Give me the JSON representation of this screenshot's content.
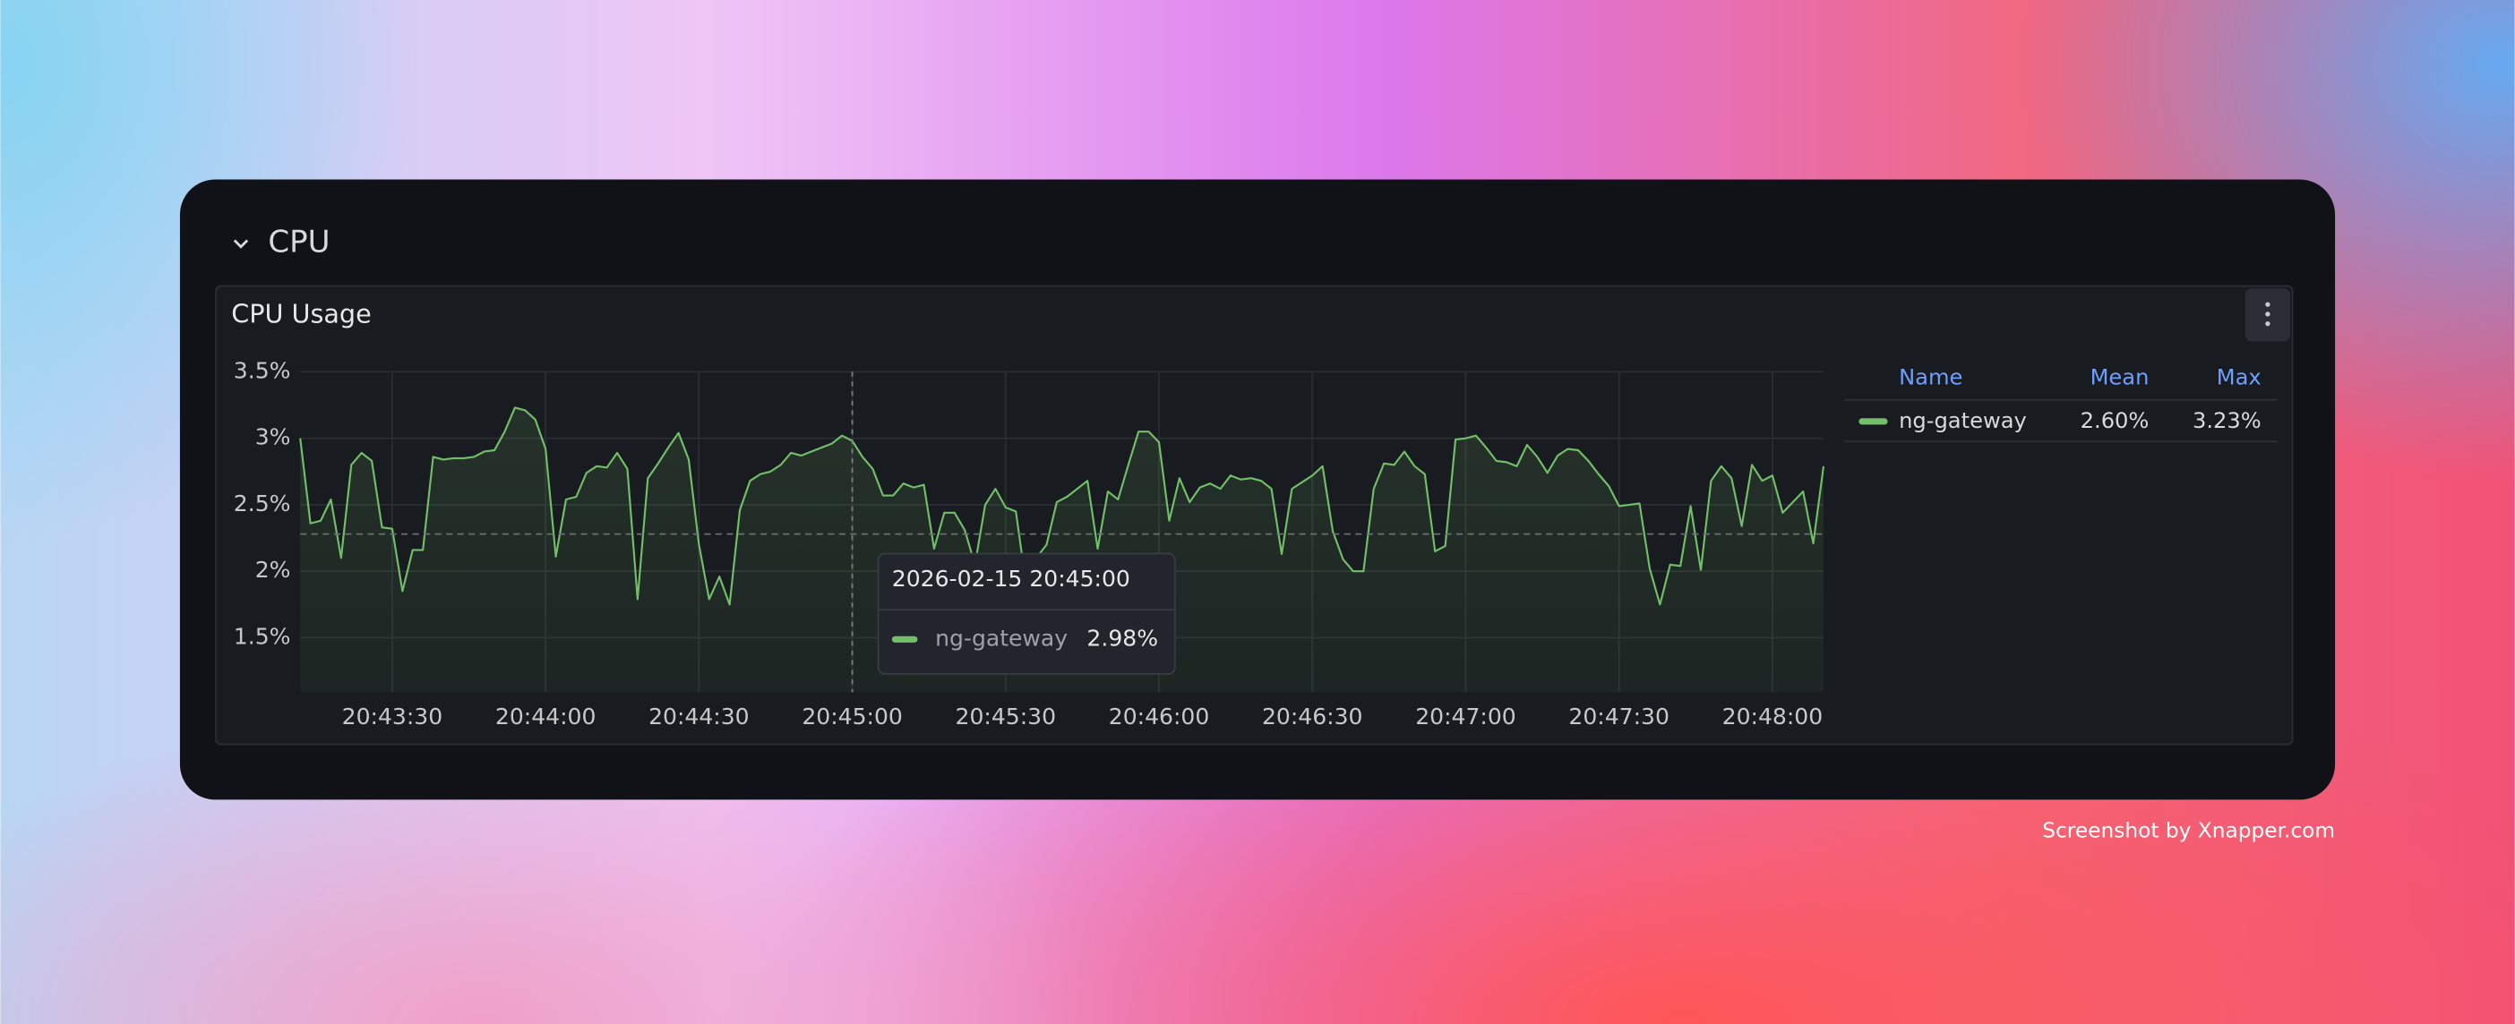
{
  "section": {
    "title": "CPU"
  },
  "chart_data": {
    "type": "line",
    "title": "CPU Usage",
    "x": [
      "20:43:12",
      "20:43:14",
      "20:43:16",
      "20:43:18",
      "20:43:20",
      "20:43:22",
      "20:43:24",
      "20:43:26",
      "20:43:28",
      "20:43:30",
      "20:43:32",
      "20:43:34",
      "20:43:36",
      "20:43:38",
      "20:43:40",
      "20:43:42",
      "20:43:44",
      "20:43:46",
      "20:43:48",
      "20:43:50",
      "20:43:52",
      "20:43:54",
      "20:43:56",
      "20:43:58",
      "20:44:00",
      "20:44:02",
      "20:44:04",
      "20:44:06",
      "20:44:08",
      "20:44:10",
      "20:44:12",
      "20:44:14",
      "20:44:16",
      "20:44:18",
      "20:44:20",
      "20:44:22",
      "20:44:24",
      "20:44:26",
      "20:44:28",
      "20:44:30",
      "20:44:32",
      "20:44:34",
      "20:44:36",
      "20:44:38",
      "20:44:40",
      "20:44:42",
      "20:44:44",
      "20:44:46",
      "20:44:48",
      "20:44:50",
      "20:44:52",
      "20:44:54",
      "20:44:56",
      "20:44:58",
      "20:45:00",
      "20:45:02",
      "20:45:04",
      "20:45:06",
      "20:45:08",
      "20:45:10",
      "20:45:12",
      "20:45:14",
      "20:45:16",
      "20:45:18",
      "20:45:20",
      "20:45:22",
      "20:45:24",
      "20:45:26",
      "20:45:28",
      "20:45:30",
      "20:45:32",
      "20:45:34",
      "20:45:36",
      "20:45:38",
      "20:45:40",
      "20:45:42",
      "20:45:44",
      "20:45:46",
      "20:45:48",
      "20:45:50",
      "20:45:52",
      "20:45:54",
      "20:45:56",
      "20:45:58",
      "20:46:00",
      "20:46:02",
      "20:46:04",
      "20:46:06",
      "20:46:08",
      "20:46:10",
      "20:46:12",
      "20:46:14",
      "20:46:16",
      "20:46:18",
      "20:46:20",
      "20:46:22",
      "20:46:24",
      "20:46:26",
      "20:46:28",
      "20:46:30",
      "20:46:32",
      "20:46:34",
      "20:46:36",
      "20:46:38",
      "20:46:40",
      "20:46:42",
      "20:46:44",
      "20:46:46",
      "20:46:48",
      "20:46:50",
      "20:46:52",
      "20:46:54",
      "20:46:56",
      "20:46:58",
      "20:47:00",
      "20:47:02",
      "20:47:04",
      "20:47:06",
      "20:47:08",
      "20:47:10",
      "20:47:12",
      "20:47:14",
      "20:47:16",
      "20:47:18",
      "20:47:20",
      "20:47:22",
      "20:47:24",
      "20:47:26",
      "20:47:28",
      "20:47:30",
      "20:47:32",
      "20:47:34",
      "20:47:36",
      "20:47:38",
      "20:47:40",
      "20:47:42",
      "20:47:44",
      "20:47:46",
      "20:47:48",
      "20:47:50",
      "20:47:52",
      "20:47:54",
      "20:47:56",
      "20:47:58",
      "20:48:00",
      "20:48:02",
      "20:48:04",
      "20:48:06",
      "20:48:08",
      "20:48:10"
    ],
    "xlim": [
      "20:43:12",
      "20:48:10"
    ],
    "xticks": [
      "20:43:30",
      "20:44:00",
      "20:44:30",
      "20:45:00",
      "20:45:30",
      "20:46:00",
      "20:46:30",
      "20:47:00",
      "20:47:30",
      "20:48:00"
    ],
    "ylim": [
      1.09,
      3.5
    ],
    "yticks": [
      {
        "value": 1.5,
        "label": "1.5%"
      },
      {
        "value": 2,
        "label": "2%"
      },
      {
        "value": 2.5,
        "label": "2.5%"
      },
      {
        "value": 3,
        "label": "3%"
      },
      {
        "value": 3.5,
        "label": "3.5%"
      }
    ],
    "grid": true,
    "threshold": 2.28,
    "series": [
      {
        "name": "ng-gateway",
        "color": "#73bf69",
        "values": [
          3.0,
          2.36,
          2.38,
          2.54,
          2.1,
          2.8,
          2.89,
          2.83,
          2.33,
          2.32,
          1.85,
          2.16,
          2.16,
          2.86,
          2.84,
          2.85,
          2.85,
          2.86,
          2.9,
          2.91,
          3.05,
          3.23,
          3.21,
          3.14,
          2.92,
          2.11,
          2.54,
          2.56,
          2.74,
          2.79,
          2.78,
          2.89,
          2.77,
          1.79,
          2.7,
          2.81,
          2.93,
          3.04,
          2.84,
          2.2,
          1.79,
          1.96,
          1.75,
          2.46,
          2.68,
          2.73,
          2.75,
          2.8,
          2.89,
          2.87,
          2.9,
          2.93,
          2.96,
          3.02,
          2.98,
          2.86,
          2.77,
          2.57,
          2.57,
          2.66,
          2.63,
          2.65,
          2.17,
          2.44,
          2.44,
          2.31,
          2.05,
          2.5,
          2.62,
          2.48,
          2.45,
          1.9,
          2.1,
          2.2,
          2.52,
          2.56,
          2.62,
          2.68,
          2.17,
          2.6,
          2.54,
          2.8,
          3.05,
          3.05,
          2.97,
          2.38,
          2.7,
          2.52,
          2.63,
          2.66,
          2.62,
          2.72,
          2.69,
          2.7,
          2.68,
          2.62,
          2.13,
          2.62,
          2.67,
          2.72,
          2.79,
          2.3,
          2.09,
          2.0,
          2.0,
          2.62,
          2.81,
          2.8,
          2.9,
          2.79,
          2.73,
          2.15,
          2.19,
          2.99,
          3.0,
          3.02,
          2.93,
          2.83,
          2.82,
          2.79,
          2.95,
          2.86,
          2.74,
          2.87,
          2.92,
          2.91,
          2.83,
          2.73,
          2.64,
          2.49,
          2.5,
          2.51,
          2.02,
          1.75,
          2.05,
          2.04,
          2.49,
          2.01,
          2.68,
          2.79,
          2.7,
          2.34,
          2.8,
          2.68,
          2.72,
          2.44,
          2.52,
          2.6,
          2.21,
          2.79
        ]
      }
    ]
  },
  "legend": {
    "headers": [
      "Name",
      "Mean",
      "Max"
    ],
    "values": [
      2.6,
      3.23
    ],
    "value_labels": [
      "2.60%",
      "3.23%"
    ]
  },
  "tooltip": {
    "title": "2026-02-15 20:45:00",
    "values": [
      2.98
    ],
    "value_labels": [
      "2.98%"
    ]
  },
  "watermark": "Screenshot by Xnapper.com"
}
